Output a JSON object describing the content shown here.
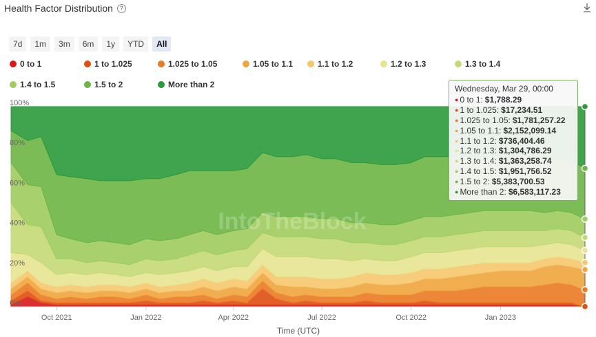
{
  "header": {
    "title": "Health Factor Distribution",
    "help_icon": "question-circle-icon",
    "download_icon": "download-icon"
  },
  "ranges": [
    "7d",
    "1m",
    "3m",
    "6m",
    "1y",
    "YTD",
    "All"
  ],
  "active_range": "All",
  "watermark": "IntoTheBlock",
  "tooltip": {
    "date": "Wednesday, Mar 29, 00:00",
    "rows": [
      {
        "label": "0 to 1:",
        "value": "$1,788.29"
      },
      {
        "label": "1 to 1.025:",
        "value": "$17,234.51"
      },
      {
        "label": "1.025 to 1.05:",
        "value": "$1,781,257.22"
      },
      {
        "label": "1.05 to 1.1:",
        "value": "$2,152,099.14"
      },
      {
        "label": "1.1 to 1.2:",
        "value": "$736,404.46"
      },
      {
        "label": "1.2 to 1.3:",
        "value": "$1,304,786.29"
      },
      {
        "label": "1.3 to 1.4:",
        "value": "$1,363,258.74"
      },
      {
        "label": "1.4 to 1.5:",
        "value": "$1,951,756.52"
      },
      {
        "label": "1.5 to 2:",
        "value": "$5,383,700.53"
      },
      {
        "label": "More than 2:",
        "value": "$6,583,117.23"
      }
    ]
  },
  "chart_data": {
    "type": "area",
    "stacking": "percent",
    "xlabel": "Time (UTC)",
    "ylabel": "",
    "ylim": [
      0,
      100
    ],
    "y_ticks": [
      "0%",
      "20%",
      "40%",
      "60%",
      "80%",
      "100%"
    ],
    "x_ticks": [
      "Oct 2021",
      "Jan 2022",
      "Apr 2022",
      "Jul 2022",
      "Oct 2022",
      "Jan 2023"
    ],
    "x_tick_dates": [
      "2021-10-01",
      "2022-01-01",
      "2022-04-01",
      "2022-07-01",
      "2022-10-01",
      "2023-01-01"
    ],
    "x_range": [
      "2021-08-15",
      "2023-03-29"
    ],
    "legend_position": "top",
    "x": [
      "2021-08-15",
      "2021-09-01",
      "2021-09-15",
      "2021-10-01",
      "2021-10-15",
      "2021-11-01",
      "2021-11-15",
      "2021-12-01",
      "2021-12-15",
      "2022-01-01",
      "2022-01-15",
      "2022-02-01",
      "2022-02-15",
      "2022-03-01",
      "2022-03-15",
      "2022-04-01",
      "2022-04-15",
      "2022-05-01",
      "2022-05-15",
      "2022-06-01",
      "2022-06-15",
      "2022-07-01",
      "2022-07-15",
      "2022-08-01",
      "2022-08-15",
      "2022-09-01",
      "2022-09-15",
      "2022-10-01",
      "2022-10-15",
      "2022-11-01",
      "2022-11-15",
      "2022-12-01",
      "2022-12-15",
      "2023-01-01",
      "2023-01-15",
      "2023-02-01",
      "2023-02-15",
      "2023-03-01",
      "2023-03-15",
      "2023-03-29"
    ],
    "series": [
      {
        "name": "0 to 1",
        "color": "#d7191c",
        "values": [
          1,
          5,
          2,
          1,
          1,
          1,
          1,
          1,
          1,
          1,
          1,
          1,
          1,
          1,
          1,
          1,
          1,
          1,
          1,
          1,
          1,
          1,
          1,
          1,
          1,
          1,
          1,
          1,
          1,
          1,
          1,
          1,
          1,
          1,
          1,
          1,
          1,
          1,
          1,
          0.01
        ]
      },
      {
        "name": "1 to 1.025",
        "color": "#e04e12",
        "values": [
          2,
          3,
          1,
          1,
          1,
          1,
          1,
          1,
          1,
          2,
          1,
          1,
          1,
          2,
          1,
          2,
          1,
          8,
          3,
          1,
          2,
          1,
          1,
          1,
          2,
          1,
          1,
          1,
          2,
          1,
          1,
          1,
          1,
          1,
          1,
          1,
          1,
          1,
          1,
          0.08
        ]
      },
      {
        "name": "1.025 to 1.05",
        "color": "#ea7a24",
        "values": [
          3,
          4,
          3,
          2,
          3,
          2,
          3,
          3,
          2,
          3,
          2,
          3,
          3,
          3,
          2,
          3,
          3,
          4,
          3,
          3,
          3,
          3,
          3,
          3,
          4,
          4,
          4,
          4,
          5,
          6,
          6,
          7,
          8,
          8,
          8,
          8,
          9,
          10,
          9,
          8.5
        ]
      },
      {
        "name": "1.05 to 1.1",
        "color": "#f0a53e",
        "values": [
          3,
          3,
          3,
          3,
          3,
          3,
          3,
          3,
          3,
          3,
          3,
          3,
          3,
          4,
          4,
          4,
          4,
          4,
          4,
          5,
          4,
          4,
          4,
          5,
          5,
          5,
          5,
          6,
          6,
          6,
          7,
          7,
          7,
          8,
          8,
          8,
          9,
          9,
          9,
          10.2
        ]
      },
      {
        "name": "1.1 to 1.2",
        "color": "#f6c66b",
        "values": [
          3,
          3,
          3,
          3,
          3,
          3,
          3,
          3,
          3,
          3,
          3,
          3,
          4,
          4,
          4,
          4,
          4,
          4,
          4,
          5,
          5,
          5,
          5,
          5,
          5,
          5,
          5,
          5,
          5,
          5,
          5,
          5,
          5,
          4,
          4,
          4,
          4,
          4,
          4,
          3.5
        ]
      },
      {
        "name": "1.2 to 1.3",
        "color": "#e7e490",
        "values": [
          15,
          8,
          10,
          6,
          6,
          6,
          6,
          5,
          5,
          5,
          6,
          6,
          6,
          6,
          6,
          6,
          7,
          8,
          10,
          10,
          10,
          10,
          10,
          8,
          7,
          7,
          7,
          8,
          8,
          8,
          8,
          8,
          8,
          8,
          8,
          8,
          7,
          7,
          7,
          6.2
        ]
      },
      {
        "name": "1.3 to 1.4",
        "color": "#c4d975",
        "values": [
          25,
          15,
          18,
          8,
          7,
          6,
          6,
          6,
          6,
          7,
          7,
          7,
          8,
          8,
          8,
          8,
          9,
          8,
          10,
          10,
          10,
          10,
          10,
          9,
          8,
          8,
          8,
          8,
          8,
          8,
          8,
          8,
          8,
          8,
          8,
          8,
          7,
          7,
          7,
          6.5
        ]
      },
      {
        "name": "1.4 to 1.5",
        "color": "#9fcc5e",
        "values": [
          20,
          20,
          20,
          12,
          10,
          10,
          10,
          10,
          10,
          10,
          10,
          10,
          10,
          10,
          10,
          10,
          10,
          10,
          10,
          10,
          10,
          10,
          10,
          10,
          10,
          10,
          10,
          10,
          10,
          10,
          10,
          10,
          10,
          10,
          10,
          10,
          9,
          9,
          9,
          9.3
        ]
      },
      {
        "name": "1.5 to 2",
        "color": "#6db544",
        "values": [
          16,
          22,
          25,
          30,
          31,
          32,
          30,
          31,
          32,
          30,
          31,
          32,
          32,
          30,
          32,
          30,
          30,
          30,
          30,
          30,
          31,
          30,
          30,
          30,
          30,
          30,
          30,
          29,
          30,
          30,
          29,
          28,
          27,
          27,
          27,
          27,
          27,
          26,
          26,
          25.6
        ]
      },
      {
        "name": "More than 2",
        "color": "#2a9a3a",
        "values": [
          12,
          17,
          15,
          34,
          35,
          36,
          37,
          37,
          37,
          36,
          36,
          34,
          32,
          32,
          32,
          32,
          31,
          23,
          25,
          25,
          24,
          26,
          26,
          28,
          28,
          29,
          29,
          28,
          25,
          25,
          25,
          25,
          25,
          25,
          25,
          25,
          26,
          26,
          27,
          31.2
        ]
      }
    ]
  }
}
